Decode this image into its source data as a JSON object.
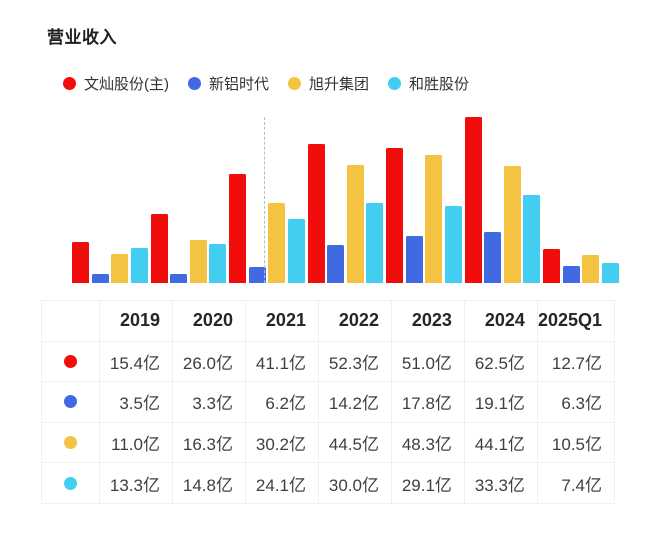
{
  "header": {
    "title": "营业收入",
    "accent_color": "#edbe59"
  },
  "legend": {
    "items": [
      {
        "label": "文灿股份(主)",
        "color": "#f20d0d"
      },
      {
        "label": "新铝时代",
        "color": "#4169e1"
      },
      {
        "label": "旭升集团",
        "color": "#f5c342"
      },
      {
        "label": "和胜股份",
        "color": "#42cdf1"
      }
    ]
  },
  "chart_data": {
    "type": "bar",
    "title": "营业收入",
    "categories": [
      "2019",
      "2020",
      "2021",
      "2022",
      "2023",
      "2024",
      "2025Q1"
    ],
    "unit": "亿",
    "series": [
      {
        "name": "文灿股份(主)",
        "color": "#f20d0d",
        "values": [
          15.4,
          26.0,
          41.1,
          52.3,
          51.0,
          62.5,
          12.7
        ]
      },
      {
        "name": "新铝时代",
        "color": "#4169e1",
        "values": [
          3.5,
          3.3,
          6.2,
          14.2,
          17.8,
          19.1,
          6.3
        ]
      },
      {
        "name": "旭升集团",
        "color": "#f5c342",
        "values": [
          11.0,
          16.3,
          30.2,
          44.5,
          48.3,
          44.1,
          10.5
        ]
      },
      {
        "name": "和胜股份",
        "color": "#42cdf1",
        "values": [
          13.3,
          14.8,
          24.1,
          30.0,
          29.1,
          33.3,
          7.4
        ]
      }
    ],
    "ylim": [
      0,
      62.5
    ],
    "grid": false,
    "legend_position": "top",
    "marker_line": {
      "style": "dashed",
      "color": "#bcbcbc",
      "location": "within 2021 group, before 旭升集团 bar"
    }
  },
  "table": {
    "columns": [
      "2019",
      "2020",
      "2021",
      "2022",
      "2023",
      "2024",
      "2025Q1"
    ],
    "rows": [
      {
        "dot_color": "#f20d0d",
        "values": [
          "15.4亿",
          "26.0亿",
          "41.1亿",
          "52.3亿",
          "51.0亿",
          "62.5亿",
          "12.7亿"
        ]
      },
      {
        "dot_color": "#4169e1",
        "values": [
          "3.5亿",
          "3.3亿",
          "6.2亿",
          "14.2亿",
          "17.8亿",
          "19.1亿",
          "6.3亿"
        ]
      },
      {
        "dot_color": "#f5c342",
        "values": [
          "11.0亿",
          "16.3亿",
          "30.2亿",
          "44.5亿",
          "48.3亿",
          "44.1亿",
          "10.5亿"
        ]
      },
      {
        "dot_color": "#42cdf1",
        "values": [
          "13.3亿",
          "14.8亿",
          "24.1亿",
          "30.0亿",
          "29.1亿",
          "33.3亿",
          "7.4亿"
        ]
      }
    ]
  }
}
